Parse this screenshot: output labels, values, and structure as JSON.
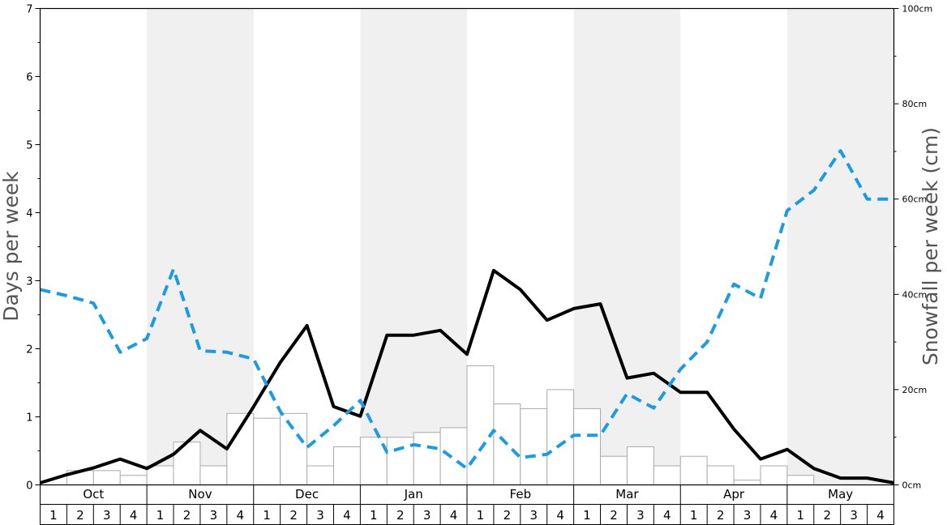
{
  "chart_data": {
    "type": "bar",
    "ylabel": "Days per week",
    "y2label": "Snowfall per week (cm)",
    "ylim": [
      0,
      7
    ],
    "y2lim": [
      0,
      100
    ],
    "y_ticks": [
      "0",
      "1",
      "2",
      "3",
      "4",
      "5",
      "6",
      "7"
    ],
    "y2_ticks": [
      "0cm",
      "20cm",
      "40cm",
      "60cm",
      "80cm",
      "100cm"
    ],
    "months": [
      "Oct",
      "Nov",
      "Dec",
      "Jan",
      "Feb",
      "Mar",
      "Apr",
      "May"
    ],
    "weeks": [
      "1",
      "2",
      "3",
      "4"
    ],
    "shaded_months": [
      "Nov",
      "Jan",
      "Mar",
      "May"
    ],
    "grid": false,
    "series": [
      {
        "kind": "bar",
        "axis": "y2",
        "color": "#ffffff",
        "values": [
          0,
          3,
          3,
          2,
          4,
          9,
          4,
          15,
          14,
          15,
          4,
          8,
          10,
          10,
          11,
          12,
          25,
          17,
          16,
          20,
          16,
          6,
          8,
          4,
          6,
          4,
          1,
          4,
          2,
          0,
          0,
          0
        ]
      },
      {
        "kind": "line",
        "axis": "y",
        "style": "solid",
        "color": "#000000",
        "values": [
          0.03,
          0.15,
          0.25,
          0.38,
          0.24,
          0.45,
          0.8,
          0.53,
          1.15,
          1.8,
          2.34,
          1.15,
          1.01,
          2.2,
          2.2,
          2.27,
          1.92,
          3.15,
          2.87,
          2.42,
          2.59,
          2.66,
          1.57,
          1.64,
          1.36,
          1.36,
          0.82,
          0.38,
          0.52,
          0.24,
          0.1,
          0.1,
          0.03
        ]
      },
      {
        "kind": "line",
        "axis": "y",
        "style": "dashed",
        "color": "#1e9be0",
        "values": [
          2.87,
          2.78,
          2.67,
          1.95,
          2.15,
          3.17,
          1.97,
          1.95,
          1.85,
          1.08,
          0.55,
          0.87,
          1.24,
          0.48,
          0.59,
          0.53,
          0.24,
          0.8,
          0.4,
          0.45,
          0.73,
          0.73,
          1.34,
          1.13,
          1.7,
          2.1,
          2.95,
          2.74,
          4.03,
          4.33,
          4.91,
          4.2,
          4.2
        ]
      }
    ]
  }
}
